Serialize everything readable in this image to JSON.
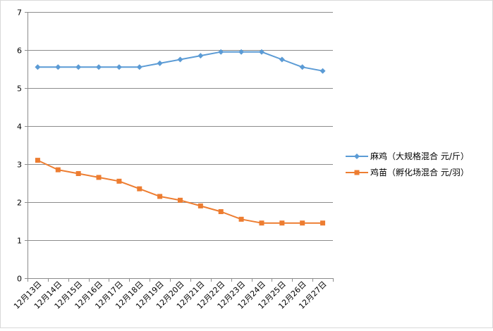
{
  "chart_data": {
    "type": "line",
    "categories": [
      "12月13日",
      "12月14日",
      "12月15日",
      "12月16日",
      "12月17日",
      "12月18日",
      "12月19日",
      "12月20日",
      "12月21日",
      "12月22日",
      "12月23日",
      "12月24日",
      "12月25日",
      "12月26日",
      "12月27日"
    ],
    "ylim": [
      0,
      7
    ],
    "yticks": [
      "0",
      "1",
      "2",
      "3",
      "4",
      "5",
      "6",
      "7"
    ],
    "grid": "horizontal",
    "legend_position": "right",
    "series": [
      {
        "name": "麻鸡（大规格混合 元/斤）",
        "color": "#5b9bd5",
        "marker": "diamond",
        "values": [
          5.55,
          5.55,
          5.55,
          5.55,
          5.55,
          5.55,
          5.65,
          5.75,
          5.85,
          5.95,
          5.95,
          5.95,
          5.75,
          5.55,
          5.45
        ]
      },
      {
        "name": "鸡苗（孵化场混合 元/羽）",
        "color": "#ed7d31",
        "marker": "square",
        "values": [
          3.1,
          2.85,
          2.75,
          2.65,
          2.55,
          2.35,
          2.15,
          2.05,
          1.9,
          1.75,
          1.55,
          1.45,
          1.45,
          1.45,
          1.45
        ]
      }
    ]
  }
}
